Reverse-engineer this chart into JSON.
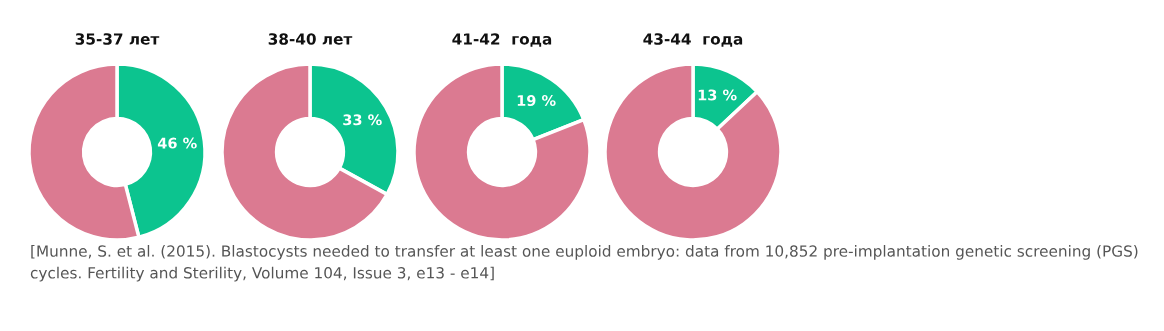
{
  "chart_data": [
    {
      "type": "donut",
      "title": "35-37 лет",
      "categories": [
        null,
        null
      ],
      "values": [
        46,
        54
      ],
      "colors": [
        "#0cc48f",
        "#db7a91"
      ],
      "value_labels": [
        "46 %",
        null
      ]
    },
    {
      "type": "donut",
      "title": "38-40 лет",
      "categories": [
        null,
        null
      ],
      "values": [
        33,
        67
      ],
      "colors": [
        "#0cc48f",
        "#db7a91"
      ],
      "value_labels": [
        "33 %",
        null
      ]
    },
    {
      "type": "donut",
      "title": "41-42  года",
      "categories": [
        null,
        null
      ],
      "values": [
        19,
        81
      ],
      "colors": [
        "#0cc48f",
        "#db7a91"
      ],
      "value_labels": [
        "19 %",
        null
      ]
    },
    {
      "type": "donut",
      "title": "43-44  года",
      "categories": [
        null,
        null
      ],
      "values": [
        13,
        87
      ],
      "colors": [
        "#0cc48f",
        "#db7a91"
      ],
      "value_labels": [
        "13 %",
        null
      ],
      "annotations": [
        "[Munne, S. et al. (2015). Blastocysts needed to transfer at least one euploid embryo: data from 10,852 pre-implantation genetic screening (PGS) cycles. Fertility and Sterility, Volume 104, Issue 3, e13 - e14]"
      ]
    }
  ]
}
